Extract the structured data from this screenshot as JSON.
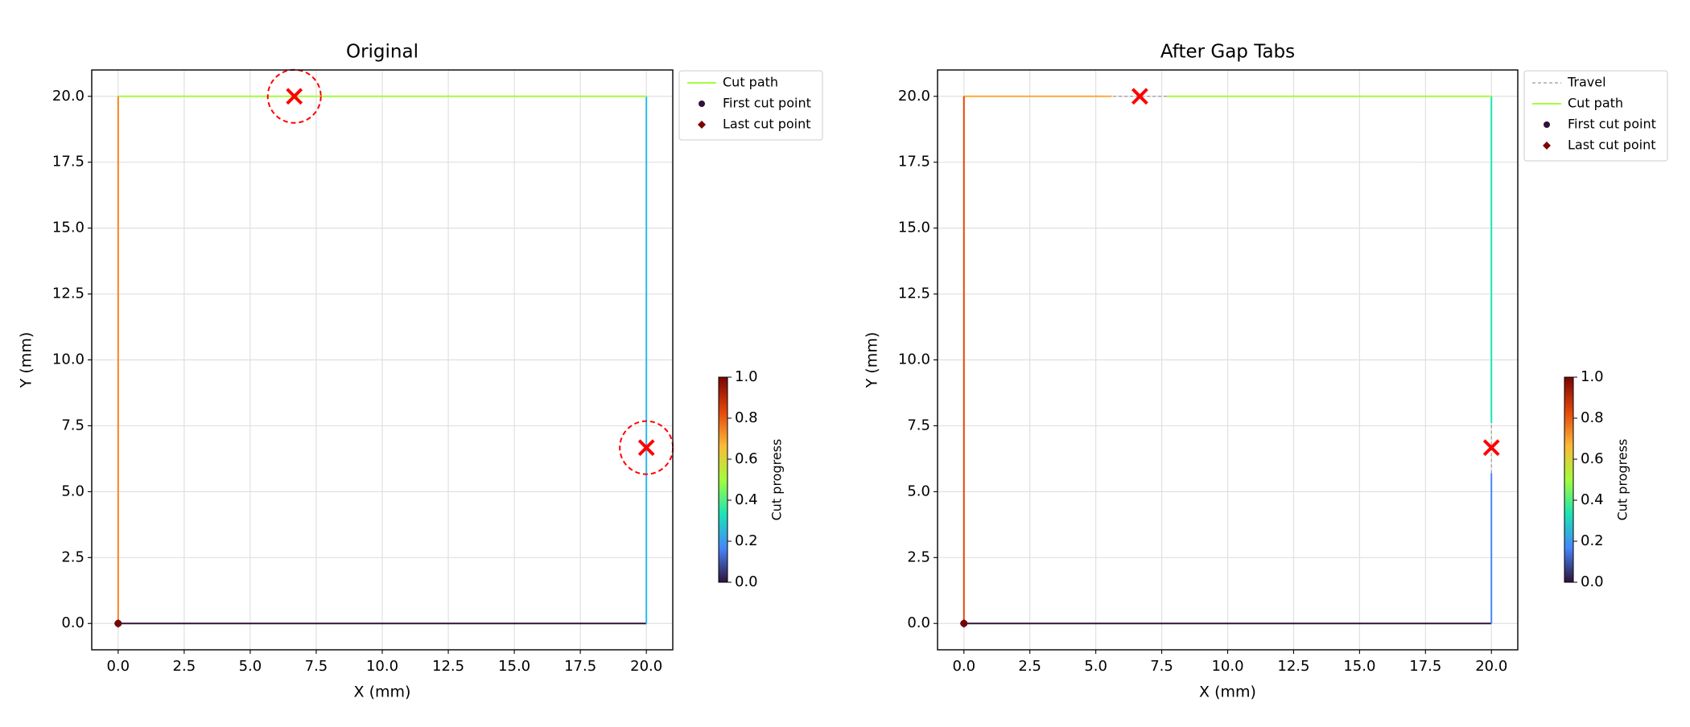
{
  "chart_data": [
    {
      "type": "line",
      "title": "Original",
      "x_label": "X (mm)",
      "y_label": "Y (mm)",
      "xlim": [
        -1,
        21
      ],
      "ylim": [
        -1,
        21
      ],
      "xticks": [
        {
          "value": 0,
          "label": "0.0"
        },
        2.5,
        {
          "value": 5,
          "label": "5.0"
        },
        7.5,
        {
          "value": 10,
          "label": "10.0"
        },
        12.5,
        {
          "value": 15,
          "label": "15.0"
        },
        17.5,
        {
          "value": 20,
          "label": "20.0"
        }
      ],
      "yticks": [
        {
          "value": 0,
          "label": "0.0"
        },
        2.5,
        {
          "value": 5,
          "label": "5.0"
        },
        7.5,
        {
          "value": 10,
          "label": "10.0"
        },
        12.5,
        {
          "value": 15,
          "label": "15.0"
        },
        17.5,
        {
          "value": 20,
          "label": "20.0"
        }
      ],
      "grid": true,
      "legend": "outside-upper-right",
      "tab_circles": true,
      "series": [
        {
          "name": "Cut path",
          "color": "#a4fc3c",
          "pieces": [
            {
              "x": [
                0,
                20
              ],
              "y": [
                0,
                0
              ],
              "color": "#30123b"
            },
            {
              "x": [
                20,
                20
              ],
              "y": [
                0,
                20
              ],
              "color": "#28bceb"
            },
            {
              "x": [
                20,
                0
              ],
              "y": [
                20,
                20
              ],
              "color": "#a4fc3c"
            },
            {
              "x": [
                0,
                0
              ],
              "y": [
                20,
                0
              ],
              "color": "#fb8022"
            }
          ]
        },
        {
          "name": "First cut point",
          "marker": "circle",
          "color": "#30123b",
          "x": [
            0
          ],
          "y": [
            0
          ]
        },
        {
          "name": "Last cut point",
          "marker": "diamond",
          "color": "#7a0403",
          "x": [
            0
          ],
          "y": [
            0
          ]
        }
      ],
      "tabs": {
        "x": [
          6.67,
          20
        ],
        "y": [
          20,
          6.67
        ],
        "color": "#ff0000"
      },
      "colorbar": {
        "label": "Cut progress",
        "lim": [
          0,
          1
        ],
        "ticks": [
          {
            "value": 0,
            "label": "0.0"
          },
          0.2,
          0.4,
          0.6,
          0.8,
          {
            "value": 1,
            "label": "1.0"
          }
        ],
        "colormap": [
          "#30123b",
          "#4686fb",
          "#1ae4b6",
          "#a4fc3c",
          "#fbb938",
          "#e4460a",
          "#7a0403"
        ]
      }
    },
    {
      "type": "line",
      "title": "After Gap Tabs",
      "x_label": "X (mm)",
      "y_label": "Y (mm)",
      "xlim": [
        -1,
        21
      ],
      "ylim": [
        -1,
        21
      ],
      "xticks": [
        {
          "value": 0,
          "label": "0.0"
        },
        2.5,
        {
          "value": 5,
          "label": "5.0"
        },
        7.5,
        {
          "value": 10,
          "label": "10.0"
        },
        12.5,
        {
          "value": 15,
          "label": "15.0"
        },
        17.5,
        {
          "value": 20,
          "label": "20.0"
        }
      ],
      "yticks": [
        {
          "value": 0,
          "label": "0.0"
        },
        2.5,
        {
          "value": 5,
          "label": "5.0"
        },
        7.5,
        {
          "value": 10,
          "label": "10.0"
        },
        12.5,
        {
          "value": 15,
          "label": "15.0"
        },
        17.5,
        {
          "value": 20,
          "label": "20.0"
        }
      ],
      "grid": true,
      "legend": "outside-upper-right",
      "tab_circles": false,
      "series": [
        {
          "name": "Travel",
          "color": "#999999",
          "dashed": true,
          "x": [
            20,
            20,
            null,
            7.7,
            5.6
          ],
          "y": [
            5.7,
            7.6,
            null,
            20,
            20
          ]
        },
        {
          "name": "Cut path",
          "color": "#a4fc3c",
          "pieces": [
            {
              "x": [
                0,
                20
              ],
              "y": [
                0,
                0
              ],
              "color": "#30123b"
            },
            {
              "x": [
                20,
                20
              ],
              "y": [
                0,
                5.7
              ],
              "color": "#4686fb"
            },
            {
              "x": [
                20,
                20
              ],
              "y": [
                7.6,
                20
              ],
              "color": "#1ae4b6"
            },
            {
              "x": [
                20,
                7.7
              ],
              "y": [
                20,
                20
              ],
              "color": "#a4fc3c"
            },
            {
              "x": [
                5.6,
                0
              ],
              "y": [
                20,
                20
              ],
              "color": "#fba938"
            },
            {
              "x": [
                0,
                0
              ],
              "y": [
                20,
                0
              ],
              "color": "#e4460a"
            }
          ]
        },
        {
          "name": "First cut point",
          "marker": "circle",
          "color": "#30123b",
          "x": [
            0
          ],
          "y": [
            0
          ]
        },
        {
          "name": "Last cut point",
          "marker": "diamond",
          "color": "#7a0403",
          "x": [
            0
          ],
          "y": [
            0
          ]
        }
      ],
      "tabs": {
        "x": [
          6.67,
          20
        ],
        "y": [
          20,
          6.67
        ],
        "color": "#ff0000"
      },
      "colorbar": {
        "label": "Cut progress",
        "lim": [
          0,
          1
        ],
        "ticks": [
          {
            "value": 0,
            "label": "0.0"
          },
          0.2,
          0.4,
          0.6,
          0.8,
          {
            "value": 1,
            "label": "1.0"
          }
        ],
        "colormap": [
          "#30123b",
          "#4686fb",
          "#1ae4b6",
          "#a4fc3c",
          "#fbb938",
          "#e4460a",
          "#7a0403"
        ]
      }
    }
  ]
}
